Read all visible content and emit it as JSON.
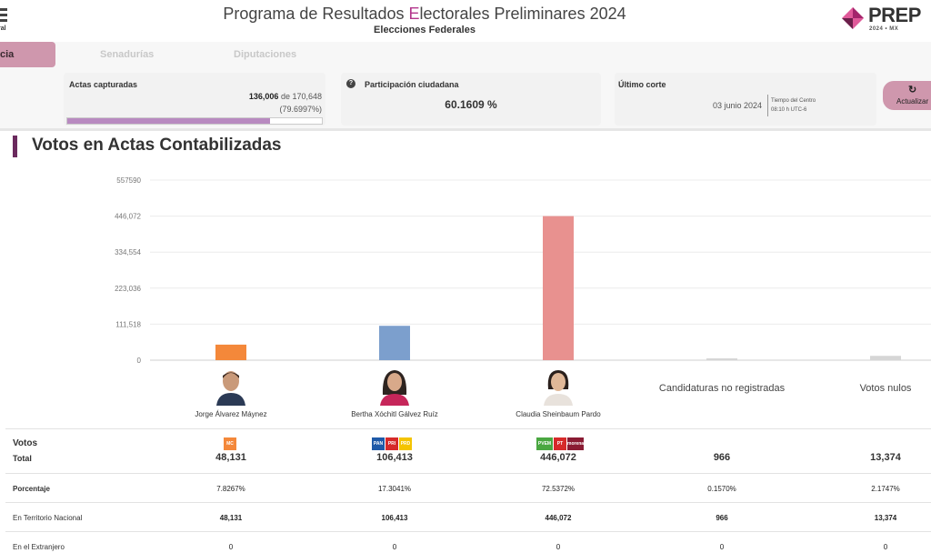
{
  "header": {
    "title_pre": "Programa de Resultados ",
    "title_e": "E",
    "title_post": "lectorales Preliminares 2024",
    "subtitle": "Elecciones Federales",
    "institution_fragment": "ral",
    "logo_text": "PREP",
    "logo_sub": "2024 • MX"
  },
  "tabs": [
    {
      "label": "cia",
      "active": true
    },
    {
      "label": "Senadurías",
      "active": false
    },
    {
      "label": "Diputaciones",
      "active": false
    }
  ],
  "stats": {
    "actas": {
      "label": "Actas capturadas",
      "captured": "136,006",
      "of": " de ",
      "total": "170,648",
      "percent_text": "(79.6997%)",
      "progress": 0.796997
    },
    "participacion": {
      "label": "Participación ciudadana",
      "value": "60.1609 %",
      "help_icon": "question-circle-icon"
    },
    "corte": {
      "label": "Último corte",
      "date": "03 junio 2024",
      "tz_line1": "Tiempo del Centro",
      "tz_line2": "08:10 h UTC-6"
    },
    "refresh": {
      "icon": "refresh-icon",
      "label": "Actualizar"
    }
  },
  "section": {
    "title": "Votos en Actas Contabilizadas"
  },
  "chart_data": {
    "type": "bar",
    "categories": [
      "Jorge Álvarez Máynez",
      "Bertha Xóchitl Gálvez Ruíz",
      "Claudia Sheinbaum Pardo",
      "Candidaturas no registradas",
      "Votos nulos"
    ],
    "values": [
      48131,
      106413,
      446072,
      966,
      13374
    ],
    "colors": [
      "#f4883a",
      "#7c9fcd",
      "#e8918f",
      "#d6d6d6",
      "#d6d6d6"
    ],
    "yticks": [
      "0",
      "111,518",
      "223,036",
      "334,554",
      "446,072",
      "557590"
    ],
    "ylim": [
      0,
      557590
    ],
    "grid": true
  },
  "candidates": [
    {
      "name": "Jorge Álvarez Máynez",
      "photo_icon": "candidate-photo"
    },
    {
      "name": "Bertha Xóchitl Gálvez Ruíz",
      "photo_icon": "candidate-photo"
    },
    {
      "name": "Claudia Sheinbaum Pardo",
      "photo_icon": "candidate-photo"
    },
    {
      "name": "Candidaturas no registradas"
    },
    {
      "name": "Votos nulos"
    }
  ],
  "parties": {
    "mc": [
      {
        "label": "MC",
        "color": "#f4883a"
      }
    ],
    "fcm": [
      {
        "label": "PAN",
        "color": "#1f5aa8"
      },
      {
        "label": "PRI",
        "color": "#d62a2a"
      },
      {
        "label": "PRD",
        "color": "#f4c400"
      }
    ],
    "shh": [
      {
        "label": "PVEM",
        "color": "#4aa741"
      },
      {
        "label": "PT",
        "color": "#d62a2a"
      },
      {
        "label": "morena",
        "color": "#8a1b33"
      }
    ]
  },
  "table": {
    "votos_label": "Votos",
    "total_label": "Total",
    "totals": [
      "48,131",
      "106,413",
      "446,072",
      "966",
      "13,374"
    ],
    "porcentaje_label": "Porcentaje",
    "porcentajes": [
      "7.8267%",
      "17.3041%",
      "72.5372%",
      "0.1570%",
      "2.1747%"
    ],
    "nacional_label": "En Territorio Nacional",
    "nacional": [
      "48,131",
      "106,413",
      "446,072",
      "966",
      "13,374"
    ],
    "extranjero_label": "En el Extranjero",
    "extranjero": [
      "0",
      "0",
      "0",
      "0",
      "0"
    ]
  }
}
